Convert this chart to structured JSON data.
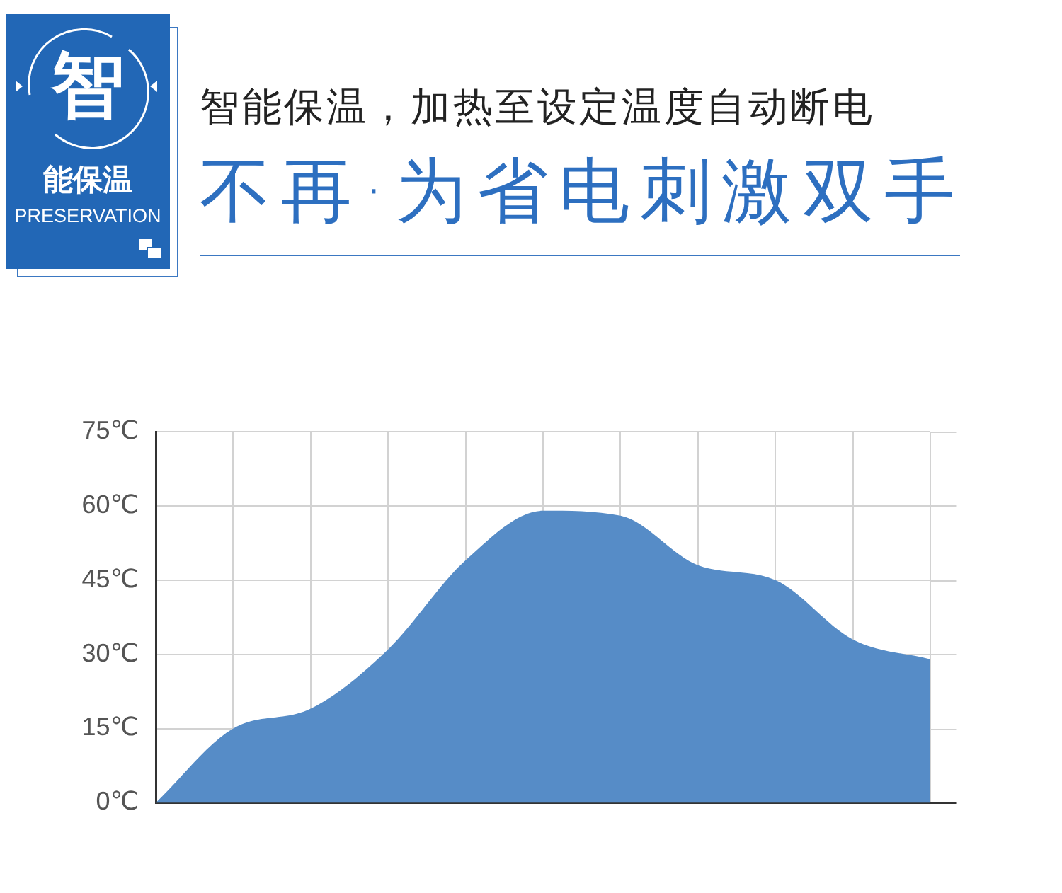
{
  "chart_data": {
    "type": "area",
    "title": "智能保温，加热至设定温度自动断电",
    "subtitle": "不再·为省电刺激双手",
    "annotations": [
      "智",
      "能保温",
      "PRESERVATION"
    ],
    "categories": [
      null,
      null,
      null,
      null,
      null,
      null,
      null,
      null,
      null,
      null,
      null
    ],
    "values": [
      0,
      15,
      19,
      31,
      49,
      59,
      58,
      48,
      45,
      33,
      29
    ],
    "color": "#568cc7",
    "ylim": [
      0,
      75
    ],
    "yticks": [
      {
        "value": 0,
        "label": "0℃"
      },
      {
        "value": 15,
        "label": "15℃"
      },
      {
        "value": 30,
        "label": "30℃"
      },
      {
        "value": 45,
        "label": "45℃"
      },
      {
        "value": 60,
        "label": "60℃"
      },
      {
        "value": 75,
        "label": "75℃"
      }
    ],
    "grid": true,
    "tick_labels": "y"
  }
}
